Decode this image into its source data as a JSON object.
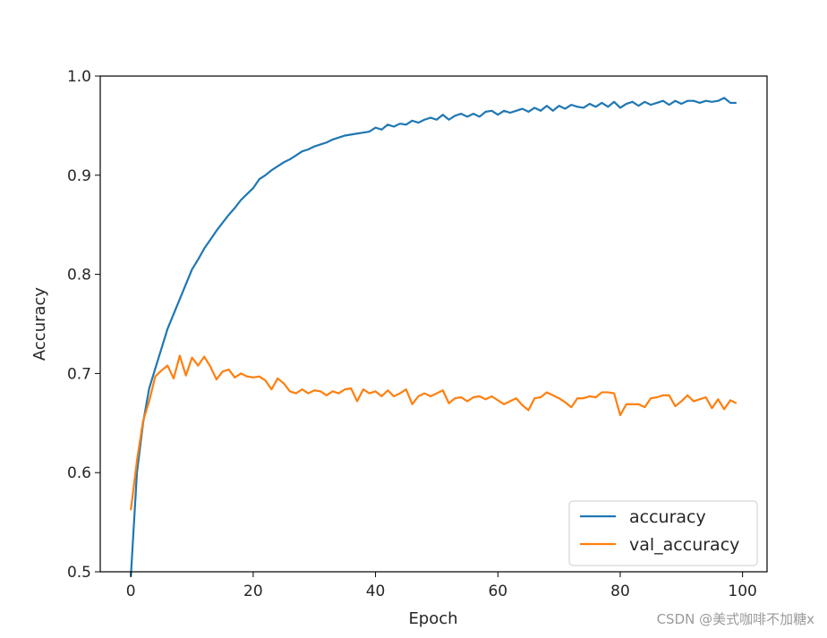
{
  "chart_data": {
    "type": "line",
    "title": "",
    "xlabel": "Epoch",
    "ylabel": "Accuracy",
    "xlim": [
      -5,
      104
    ],
    "ylim": [
      0.5,
      1.0
    ],
    "xticks": [
      0,
      20,
      40,
      60,
      80,
      100
    ],
    "yticks": [
      0.5,
      0.6,
      0.7,
      0.8,
      0.9,
      1.0
    ],
    "xtick_labels": [
      "0",
      "20",
      "40",
      "60",
      "80",
      "100"
    ],
    "ytick_labels": [
      "0.5",
      "0.6",
      "0.7",
      "0.8",
      "0.9",
      "1.0"
    ],
    "grid": false,
    "legend_position": "lower-right",
    "series": [
      {
        "name": "accuracy",
        "color": "#1f77b4",
        "values": [
          0.495,
          0.6,
          0.65,
          0.685,
          0.705,
          0.725,
          0.745,
          0.76,
          0.775,
          0.79,
          0.805,
          0.815,
          0.826,
          0.835,
          0.844,
          0.852,
          0.86,
          0.867,
          0.875,
          0.881,
          0.887,
          0.896,
          0.9,
          0.905,
          0.909,
          0.913,
          0.916,
          0.92,
          0.924,
          0.926,
          0.929,
          0.931,
          0.933,
          0.936,
          0.938,
          0.94,
          0.941,
          0.942,
          0.943,
          0.944,
          0.946,
          0.947,
          0.949,
          0.95,
          0.951,
          0.952,
          0.953,
          0.954,
          0.955,
          0.956,
          0.957,
          0.958,
          0.958,
          0.959,
          0.96,
          0.96,
          0.961,
          0.961,
          0.962,
          0.962,
          0.963,
          0.963,
          0.964,
          0.964,
          0.965,
          0.965,
          0.966,
          0.966,
          0.967,
          0.967,
          0.968,
          0.968,
          0.969,
          0.968,
          0.969,
          0.97,
          0.97,
          0.97,
          0.971,
          0.971,
          0.97,
          0.971,
          0.972,
          0.971,
          0.972,
          0.972,
          0.972,
          0.973,
          0.972,
          0.973,
          0.973,
          0.974,
          0.973,
          0.974,
          0.974,
          0.974,
          0.975,
          0.978,
          0.973,
          0.973
        ],
        "noise": [
          0,
          0,
          0,
          0,
          0,
          0,
          0,
          0,
          0,
          0,
          0,
          0,
          0,
          0,
          0,
          0,
          0,
          0,
          0,
          0,
          0,
          0,
          0,
          0,
          0,
          0,
          0,
          0,
          0,
          0,
          0,
          0,
          0,
          0,
          0,
          0,
          0,
          0,
          0,
          0,
          0.002,
          -0.001,
          0.002,
          -0.001,
          0.001,
          -0.001,
          0.002,
          -0.001,
          0.001,
          0.002,
          -0.001,
          0.003,
          -0.002,
          0.001,
          0.002,
          -0.001,
          0.001,
          -0.002,
          0.002,
          0.003,
          -0.002,
          0.002,
          -0.001,
          0.001,
          0.002,
          -0.001,
          0.002,
          -0.001,
          0.003,
          -0.002,
          0.002,
          -0.001,
          0.002,
          0.001,
          -0.001,
          0.002,
          -0.001,
          0.003,
          -0.002,
          0.003,
          -0.002,
          0.001,
          0.002,
          -0.001,
          0.002,
          -0.001,
          0.001,
          0.002,
          -0.001,
          0.002,
          -0.001,
          0.001,
          0.002,
          -0.001,
          0.001,
          0,
          0,
          0,
          0,
          0
        ]
      },
      {
        "name": "val_accuracy",
        "color": "#ff7f0e",
        "values": [
          0.562,
          0.612,
          0.652,
          0.672,
          0.697,
          0.703,
          0.708,
          0.695,
          0.718,
          0.698,
          0.716,
          0.708,
          0.717,
          0.707,
          0.694,
          0.702,
          0.704,
          0.696,
          0.7,
          0.697,
          0.696,
          0.697,
          0.693,
          0.684,
          0.695,
          0.69,
          0.682,
          0.68,
          0.684,
          0.68,
          0.683,
          0.682,
          0.678,
          0.682,
          0.68,
          0.684,
          0.685,
          0.672,
          0.684,
          0.68,
          0.682,
          0.677,
          0.683,
          0.677,
          0.68,
          0.684,
          0.669,
          0.677,
          0.68,
          0.677,
          0.68,
          0.683,
          0.67,
          0.675,
          0.676,
          0.672,
          0.676,
          0.677,
          0.674,
          0.677,
          0.673,
          0.669,
          0.672,
          0.675,
          0.668,
          0.663,
          0.675,
          0.676,
          0.681,
          0.678,
          0.675,
          0.671,
          0.666,
          0.675,
          0.675,
          0.677,
          0.676,
          0.681,
          0.681,
          0.68,
          0.658,
          0.669,
          0.669,
          0.669,
          0.666,
          0.675,
          0.676,
          0.678,
          0.678,
          0.667,
          0.672,
          0.678,
          0.672,
          0.674,
          0.676,
          0.665,
          0.674,
          0.664,
          0.673,
          0.67
        ]
      }
    ]
  },
  "watermark": "CSDN @美式咖啡不加糖x"
}
